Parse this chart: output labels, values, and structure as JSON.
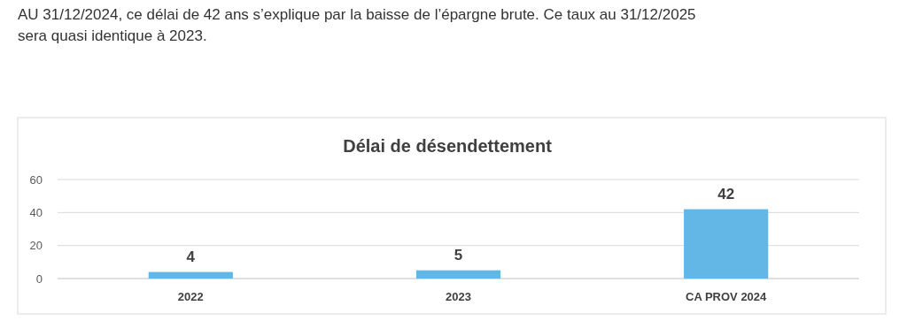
{
  "chart_data": {
    "type": "bar",
    "title": "Délai de désendettement",
    "annotations": [
      "AU 31/12/2024, ce délai de 42 ans s’explique par la baisse de l’épargne brute. Ce taux au 31/12/2025",
      "sera quasi identique à 2023."
    ],
    "categories": [
      "2022",
      "2023",
      "CA PROV 2024"
    ],
    "values": [
      4,
      5,
      42
    ],
    "color": "#63b7e6",
    "data_labels": true,
    "ylim": [
      0,
      60
    ],
    "yticks": [
      0,
      20,
      40,
      60
    ],
    "grid": "y"
  }
}
